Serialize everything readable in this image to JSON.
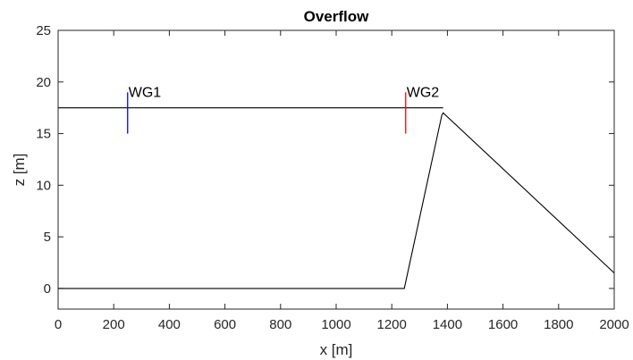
{
  "chart_data": {
    "type": "line",
    "title": "Overflow",
    "xlabel": "x [m]",
    "ylabel": "z [m]",
    "xlim": [
      0,
      2000
    ],
    "ylim": [
      -2,
      25
    ],
    "xticks": [
      0,
      200,
      400,
      600,
      800,
      1000,
      1200,
      1400,
      1600,
      1800,
      2000
    ],
    "yticks": [
      0,
      5,
      10,
      15,
      20,
      25
    ],
    "grid": false,
    "colors": {
      "bathymetry": "#000000",
      "water_level": "#000000",
      "wg1": "#0000ff",
      "wg2": "#ff0000",
      "axis": "#262626"
    },
    "series": [
      {
        "x": [
          0,
          1245,
          1380,
          1385,
          2000
        ],
        "y": [
          0,
          0,
          16.8,
          17.0,
          1.5
        ]
      },
      {
        "x": [
          0,
          1385
        ],
        "y": [
          17.5,
          17.5
        ]
      }
    ],
    "gauges": [
      {
        "label": "WG1",
        "x": 250,
        "y_from": 15,
        "y_to": 19,
        "color_key": "wg1"
      },
      {
        "label": "WG2",
        "x": 1250,
        "y_from": 15,
        "y_to": 19,
        "color_key": "wg2"
      }
    ]
  }
}
